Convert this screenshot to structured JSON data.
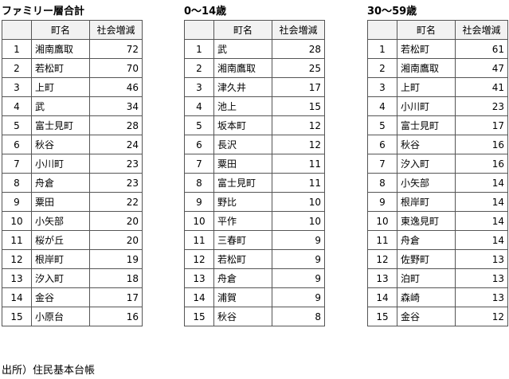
{
  "tables": [
    {
      "title": "ファミリー層合計",
      "header": [
        "町名",
        "社会増減"
      ],
      "rows": [
        [
          1,
          "湘南鷹取",
          72
        ],
        [
          2,
          "若松町",
          70
        ],
        [
          3,
          "上町",
          46
        ],
        [
          4,
          "武",
          34
        ],
        [
          5,
          "富士見町",
          28
        ],
        [
          6,
          "秋谷",
          24
        ],
        [
          7,
          "小川町",
          23
        ],
        [
          8,
          "舟倉",
          23
        ],
        [
          9,
          "粟田",
          22
        ],
        [
          10,
          "小矢部",
          20
        ],
        [
          11,
          "桜が丘",
          20
        ],
        [
          12,
          "根岸町",
          19
        ],
        [
          13,
          "汐入町",
          18
        ],
        [
          14,
          "金谷",
          17
        ],
        [
          15,
          "小原台",
          16
        ]
      ]
    },
    {
      "title": "0～14歳",
      "header": [
        "町名",
        "社会増減"
      ],
      "rows": [
        [
          1,
          "武",
          28
        ],
        [
          2,
          "湘南鷹取",
          25
        ],
        [
          3,
          "津久井",
          17
        ],
        [
          4,
          "池上",
          15
        ],
        [
          5,
          "坂本町",
          12
        ],
        [
          6,
          "長沢",
          12
        ],
        [
          7,
          "粟田",
          11
        ],
        [
          8,
          "富士見町",
          11
        ],
        [
          9,
          "野比",
          10
        ],
        [
          10,
          "平作",
          10
        ],
        [
          11,
          "三春町",
          9
        ],
        [
          12,
          "若松町",
          9
        ],
        [
          13,
          "舟倉",
          9
        ],
        [
          14,
          "浦賀",
          9
        ],
        [
          15,
          "秋谷",
          8
        ]
      ]
    },
    {
      "title": "30～59歳",
      "header": [
        "町名",
        "社会増減"
      ],
      "rows": [
        [
          1,
          "若松町",
          61
        ],
        [
          2,
          "湘南鷹取",
          47
        ],
        [
          3,
          "上町",
          41
        ],
        [
          4,
          "小川町",
          23
        ],
        [
          5,
          "富士見町",
          17
        ],
        [
          6,
          "秋谷",
          16
        ],
        [
          7,
          "汐入町",
          16
        ],
        [
          8,
          "小矢部",
          14
        ],
        [
          9,
          "根岸町",
          14
        ],
        [
          10,
          "東逸見町",
          14
        ],
        [
          11,
          "舟倉",
          14
        ],
        [
          12,
          "佐野町",
          13
        ],
        [
          13,
          "泊町",
          13
        ],
        [
          14,
          "森崎",
          13
        ],
        [
          15,
          "金谷",
          12
        ]
      ]
    }
  ],
  "footer": "出所）住民基本台帳"
}
